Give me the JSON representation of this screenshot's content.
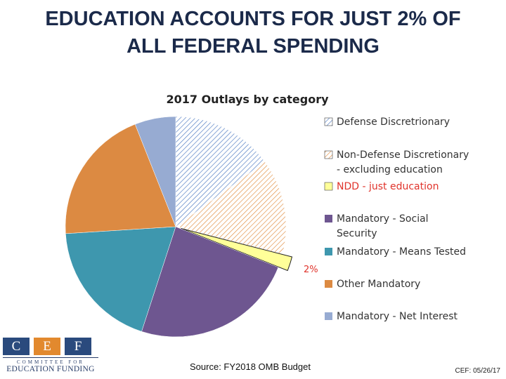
{
  "slide": {
    "title_line1": "EDUCATION ACCOUNTS FOR JUST 2% OF",
    "title_line2": "ALL FEDERAL SPENDING",
    "source": "Source: FY2018 OMB Budget",
    "date": "CEF: 05/26/17"
  },
  "logo": {
    "letters": [
      "C",
      "E",
      "F"
    ],
    "colors": [
      "#2a4a7d",
      "#e2892e",
      "#2a4a7d"
    ],
    "line1": "COMMITTEE FOR",
    "line2": "EDUCATION FUNDING"
  },
  "chart_data": {
    "type": "pie",
    "title": "2017 Outlays by category",
    "slices": [
      {
        "label": [
          "Defense Discretrionary"
        ],
        "value": 15,
        "color": "#4a78c0",
        "fill": "hatch-blue"
      },
      {
        "label": [
          "Non-Defense Discretionary",
          "- excluding education"
        ],
        "value": 14,
        "color": "#e08a3a",
        "fill": "hatch-orange"
      },
      {
        "label": [
          "NDD - just education"
        ],
        "value": 2,
        "color": "#ffff99",
        "fill": "solid",
        "label_color": "#e0332b",
        "exploded": true,
        "annotation": "2%"
      },
      {
        "label": [
          "Mandatory - Social",
          "Security"
        ],
        "value": 24,
        "color": "#6e5690",
        "fill": "solid"
      },
      {
        "label": [
          "Mandatory - Means Tested"
        ],
        "value": 19,
        "color": "#3e97ae",
        "fill": "solid"
      },
      {
        "label": [
          "Other Mandatory"
        ],
        "value": 20,
        "color": "#dc8a42",
        "fill": "solid"
      },
      {
        "label": [
          "Mandatory - Net Interest"
        ],
        "value": 6,
        "color": "#97abd2",
        "fill": "solid"
      }
    ],
    "legend_position": "right"
  }
}
